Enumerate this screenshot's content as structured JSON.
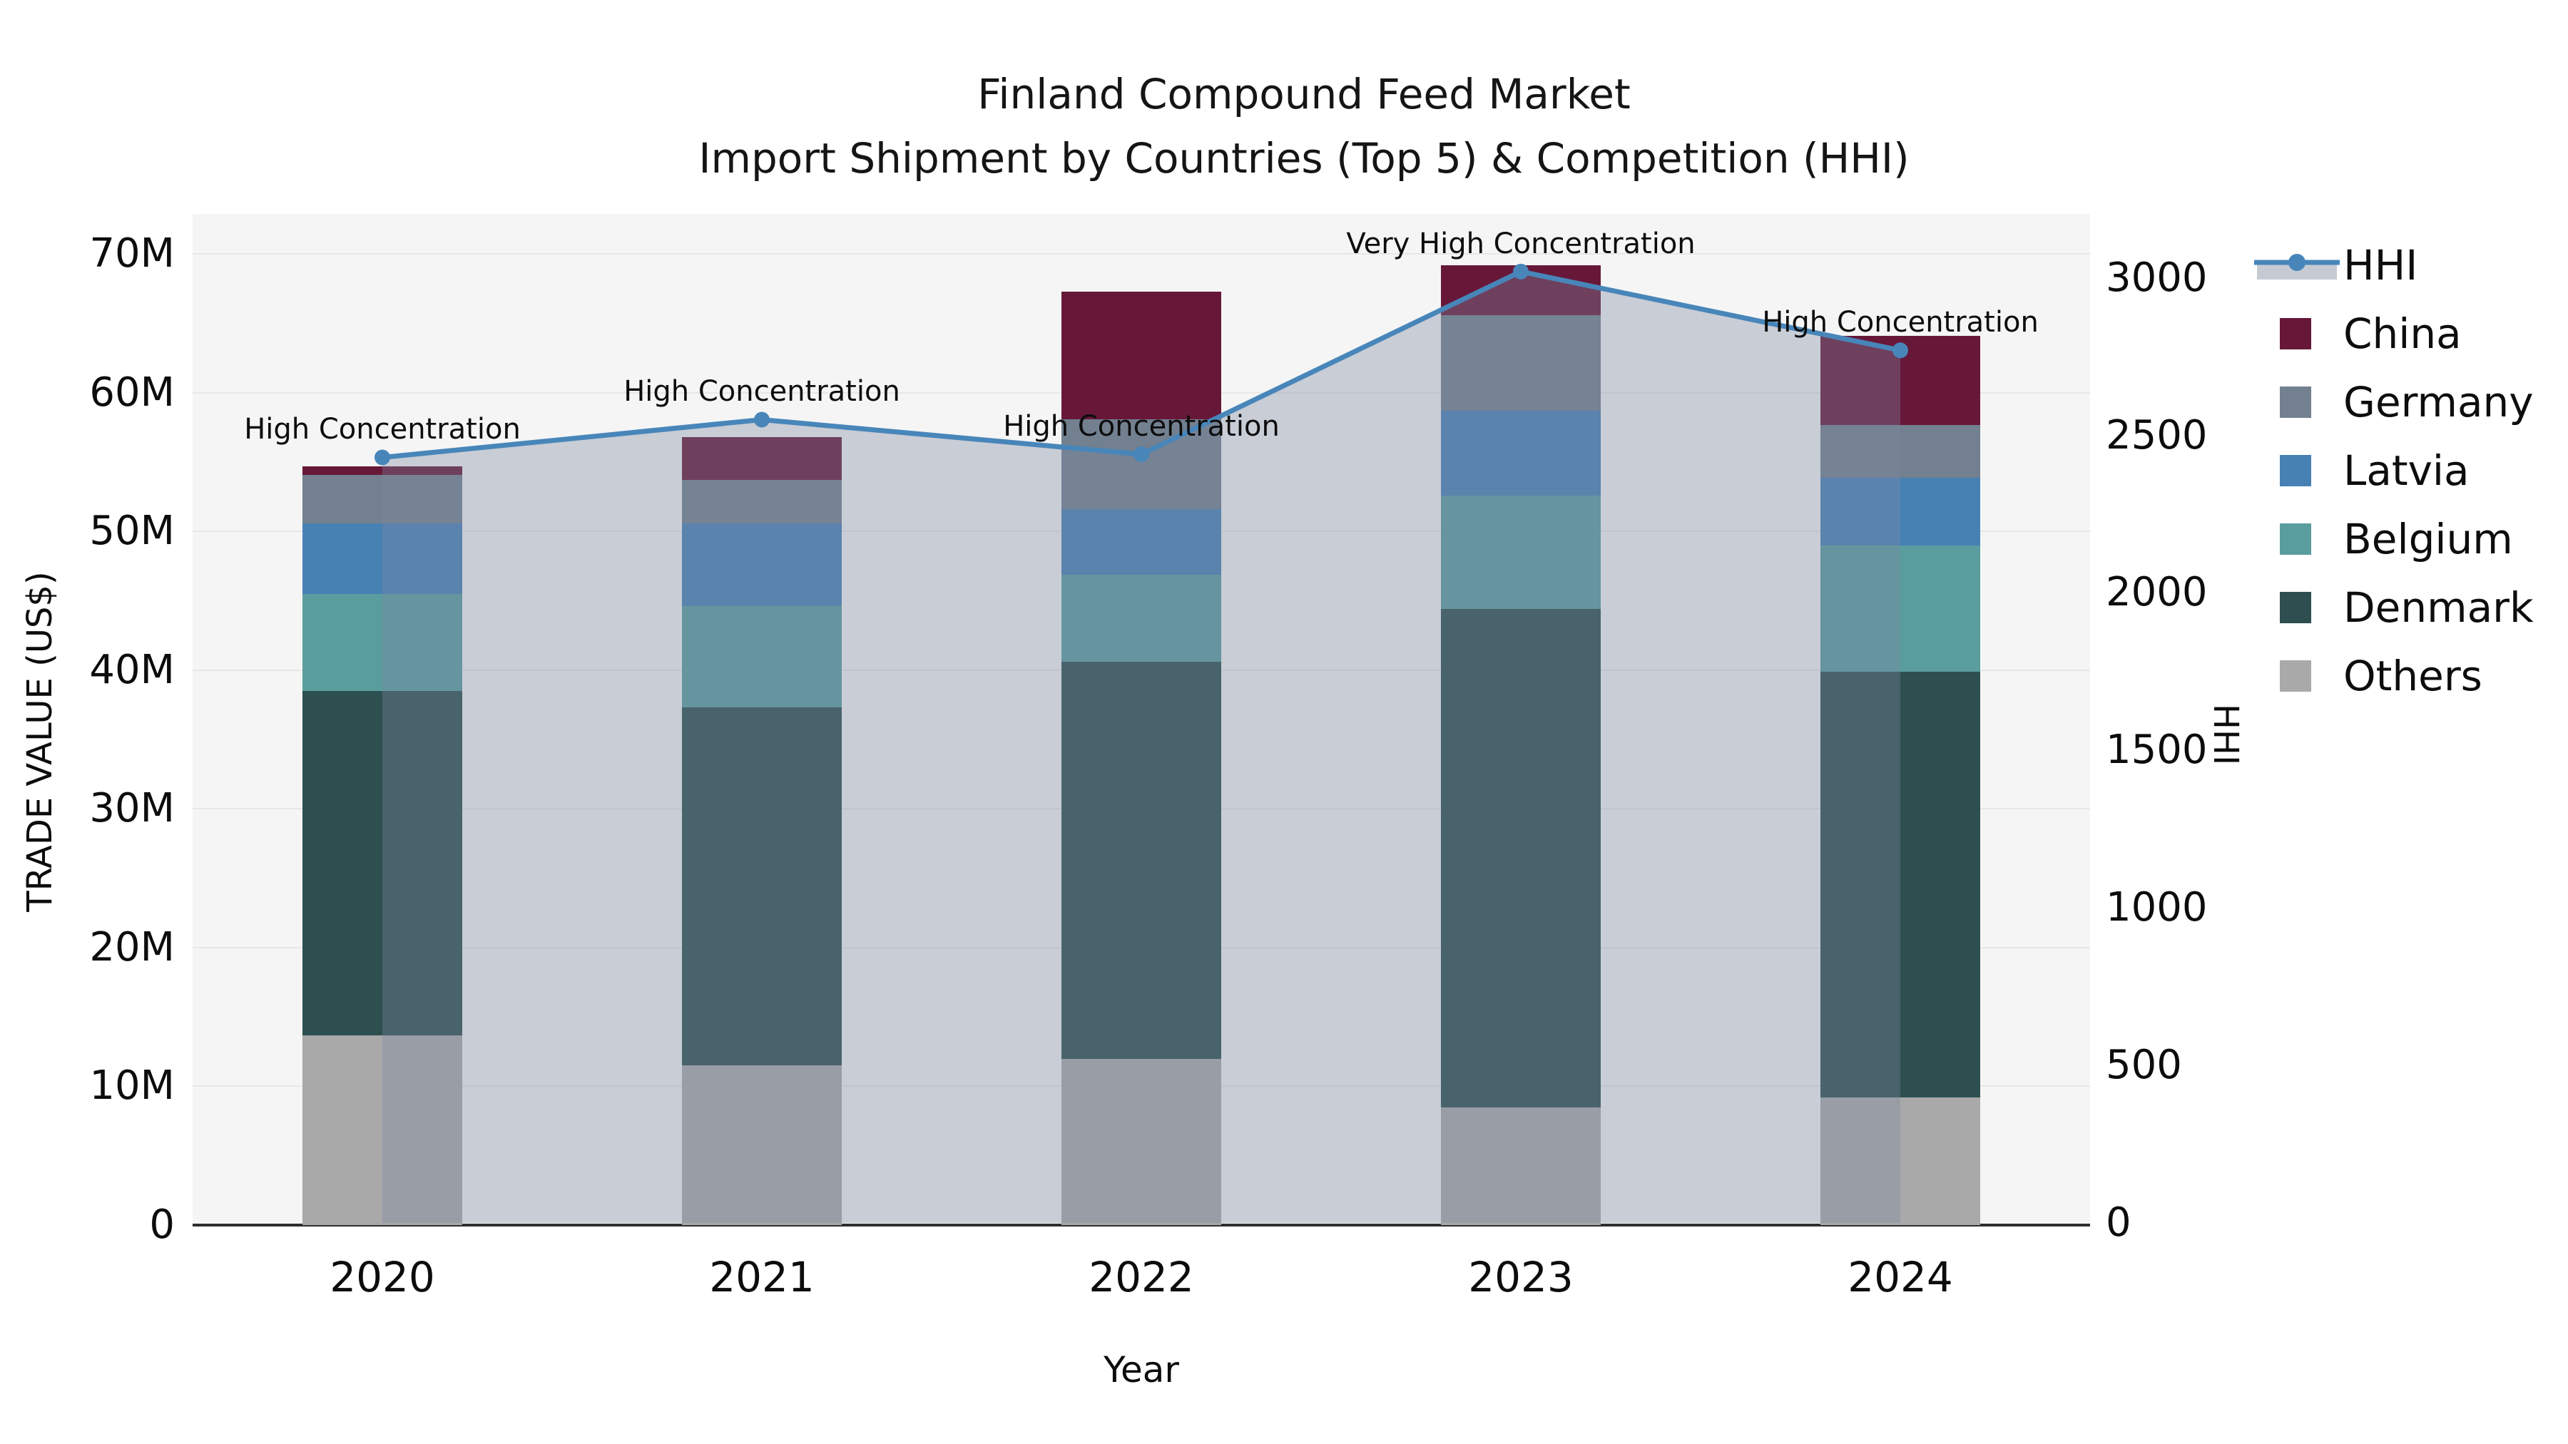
{
  "title": {
    "line1": "Finland Compound Feed Market",
    "line2": "Import Shipment by Countries (Top 5) & Competition (HHI)"
  },
  "axes": {
    "x_label": "Year",
    "y_left_label": "TRADE VALUE (US$)",
    "y_right_label": "HHI",
    "y_left_ticks": [
      "0",
      "10M",
      "20M",
      "30M",
      "40M",
      "50M",
      "60M",
      "70M"
    ],
    "y_left_tick_values_m": [
      0,
      10,
      20,
      30,
      40,
      50,
      60,
      70
    ],
    "y_right_ticks": [
      "0",
      "500",
      "1000",
      "1500",
      "2000",
      "2500",
      "3000"
    ],
    "y_right_tick_values": [
      0,
      500,
      1000,
      1500,
      2000,
      2500,
      3000
    ]
  },
  "legend": [
    {
      "label": "HHI",
      "type": "line",
      "color": "#4886ba",
      "patch_color": "#c6cbd3"
    },
    {
      "label": "China",
      "type": "patch",
      "color": "#671839"
    },
    {
      "label": "Germany",
      "type": "patch",
      "color": "#72808f"
    },
    {
      "label": "Latvia",
      "type": "patch",
      "color": "#4781b4"
    },
    {
      "label": "Belgium",
      "type": "patch",
      "color": "#5a9d9e"
    },
    {
      "label": "Denmark",
      "type": "patch",
      "color": "#2d4f4f"
    },
    {
      "label": "Others",
      "type": "patch",
      "color": "#a9a9a9"
    }
  ],
  "chart_data": {
    "type": "bar",
    "subtype": "stacked-bars-with-line-overlay",
    "categories": [
      "2020",
      "2021",
      "2022",
      "2023",
      "2024"
    ],
    "series": [
      {
        "name": "Others",
        "color": "#a9a9a9",
        "values_musd": [
          13.7,
          11.5,
          12.0,
          8.5,
          9.2
        ]
      },
      {
        "name": "Denmark",
        "color": "#2d4f4f",
        "values_musd": [
          24.8,
          25.8,
          28.6,
          35.9,
          30.7
        ]
      },
      {
        "name": "Belgium",
        "color": "#5a9d9e",
        "values_musd": [
          7.0,
          7.3,
          6.3,
          8.2,
          9.1
        ]
      },
      {
        "name": "Latvia",
        "color": "#4781b4",
        "values_musd": [
          5.1,
          6.0,
          4.7,
          6.1,
          4.9
        ]
      },
      {
        "name": "Germany",
        "color": "#72808f",
        "values_musd": [
          3.5,
          3.1,
          6.5,
          6.9,
          3.8
        ]
      },
      {
        "name": "China",
        "color": "#671839",
        "values_musd": [
          0.6,
          3.1,
          9.2,
          3.6,
          6.4
        ]
      }
    ],
    "bar_totals_musd": [
      54.7,
      56.8,
      67.3,
      69.2,
      64.1
    ],
    "line_series": {
      "name": "HHI",
      "values": [
        2430,
        2550,
        2440,
        3020,
        2770
      ],
      "color": "#4886ba",
      "area_fill": "rgba(125,137,160,0.36)"
    },
    "annotations": [
      {
        "category": "2020",
        "text": "High Concentration"
      },
      {
        "category": "2021",
        "text": "High Concentration"
      },
      {
        "category": "2022",
        "text": "High Concentration"
      },
      {
        "category": "2023",
        "text": "Very High Concentration"
      },
      {
        "category": "2024",
        "text": "High Concentration"
      }
    ],
    "title": "Finland Compound Feed Market — Import Shipment by Countries (Top 5) & Competition (HHI)",
    "xlabel": "Year",
    "ylabel_left": "TRADE VALUE (US$)",
    "ylabel_right": "HHI",
    "ylim_left_musd": [
      0,
      72.9
    ],
    "ylim_right_hhi": [
      0,
      3203
    ],
    "grid": "horizontal",
    "legend_position": "outside-right-top",
    "plot_background": "#f5f5f5",
    "grid_color": "#e7e7e7"
  }
}
